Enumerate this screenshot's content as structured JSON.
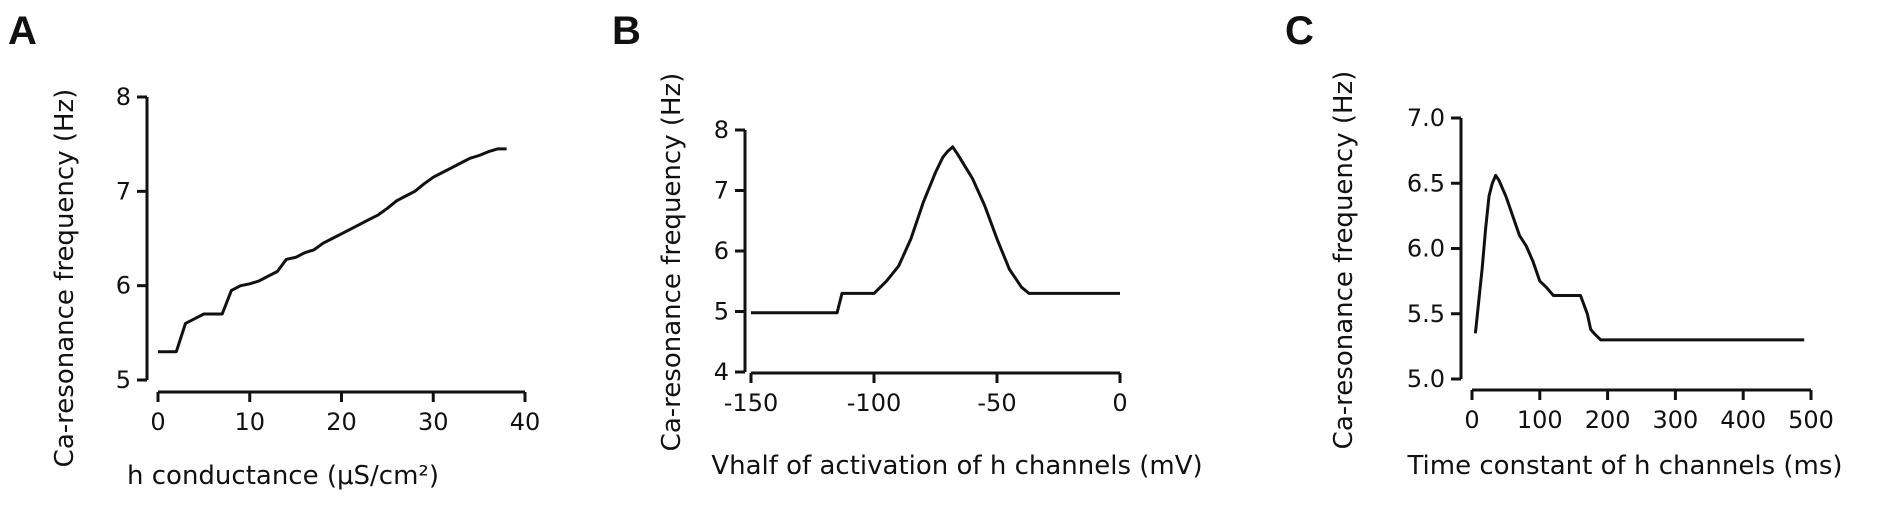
{
  "chart_data": [
    {
      "type": "line",
      "panel_label": "A",
      "xlabel": "h conductance (μS/cm²)",
      "ylabel": "Ca-resonance frequency (Hz)",
      "xlim": [
        0,
        40
      ],
      "ylim": [
        5,
        8
      ],
      "x_ticks": [
        0,
        10,
        20,
        30,
        40
      ],
      "y_ticks": [
        5,
        6,
        7,
        8
      ],
      "x_tick_labels": [
        "0",
        "10",
        "20",
        "30",
        "40"
      ],
      "y_tick_labels": [
        "5",
        "6",
        "7",
        "8"
      ],
      "series": [
        {
          "x": [
            0,
            2,
            3,
            4,
            5,
            6,
            7,
            8,
            9,
            10,
            11,
            12,
            13,
            14,
            15,
            16,
            17,
            18,
            19,
            20,
            21,
            22,
            23,
            24,
            25,
            26,
            27,
            28,
            29,
            30,
            31,
            32,
            33,
            34,
            35,
            36,
            37,
            38
          ],
          "y": [
            5.3,
            5.3,
            5.6,
            5.65,
            5.7,
            5.7,
            5.7,
            5.95,
            6.0,
            6.02,
            6.05,
            6.1,
            6.15,
            6.28,
            6.3,
            6.35,
            6.38,
            6.45,
            6.5,
            6.55,
            6.6,
            6.65,
            6.7,
            6.75,
            6.82,
            6.9,
            6.95,
            7.0,
            7.08,
            7.15,
            7.2,
            7.25,
            7.3,
            7.35,
            7.38,
            7.42,
            7.45,
            7.45
          ]
        }
      ]
    },
    {
      "type": "line",
      "panel_label": "B",
      "xlabel": "Vhalf of activation of h channels (mV)",
      "ylabel": "Ca-resonance frequency (Hz)",
      "xlim": [
        -150,
        0
      ],
      "ylim": [
        4,
        8
      ],
      "x_ticks": [
        -150,
        -100,
        -50,
        0
      ],
      "y_ticks": [
        4,
        5,
        6,
        7,
        8
      ],
      "x_tick_labels": [
        "-150",
        "-100",
        "-50",
        "0"
      ],
      "y_tick_labels": [
        "4",
        "5",
        "6",
        "7",
        "8"
      ],
      "series": [
        {
          "x": [
            -150,
            -115,
            -113,
            -100,
            -95,
            -90,
            -85,
            -80,
            -75,
            -72,
            -70,
            -68,
            -66,
            -63,
            -60,
            -55,
            -50,
            -45,
            -40,
            -37,
            -35,
            -30,
            0
          ],
          "y": [
            4.98,
            4.98,
            5.3,
            5.3,
            5.5,
            5.75,
            6.2,
            6.8,
            7.3,
            7.55,
            7.65,
            7.72,
            7.6,
            7.4,
            7.2,
            6.75,
            6.2,
            5.7,
            5.4,
            5.3,
            5.3,
            5.3,
            5.3
          ]
        }
      ]
    },
    {
      "type": "line",
      "panel_label": "C",
      "xlabel": "Time constant of h channels (ms)",
      "ylabel": "Ca-resonance frequency (Hz)",
      "xlim": [
        0,
        500
      ],
      "ylim": [
        5.0,
        7.0
      ],
      "x_ticks": [
        0,
        100,
        200,
        300,
        400,
        500
      ],
      "y_ticks": [
        5.0,
        5.5,
        6.0,
        6.5,
        7.0
      ],
      "x_tick_labels": [
        "0",
        "100",
        "200",
        "300",
        "400",
        "500"
      ],
      "y_tick_labels": [
        "5.0",
        "5.5",
        "6.0",
        "6.5",
        "7.0"
      ],
      "series": [
        {
          "x": [
            5,
            10,
            15,
            20,
            25,
            30,
            35,
            40,
            50,
            60,
            70,
            80,
            90,
            100,
            110,
            120,
            130,
            140,
            150,
            160,
            170,
            175,
            180,
            190,
            200,
            300,
            400,
            490
          ],
          "y": [
            5.35,
            5.6,
            5.85,
            6.15,
            6.4,
            6.5,
            6.56,
            6.52,
            6.4,
            6.25,
            6.1,
            6.02,
            5.9,
            5.75,
            5.7,
            5.64,
            5.64,
            5.64,
            5.64,
            5.64,
            5.5,
            5.38,
            5.35,
            5.3,
            5.3,
            5.3,
            5.3,
            5.3
          ]
        }
      ]
    }
  ]
}
